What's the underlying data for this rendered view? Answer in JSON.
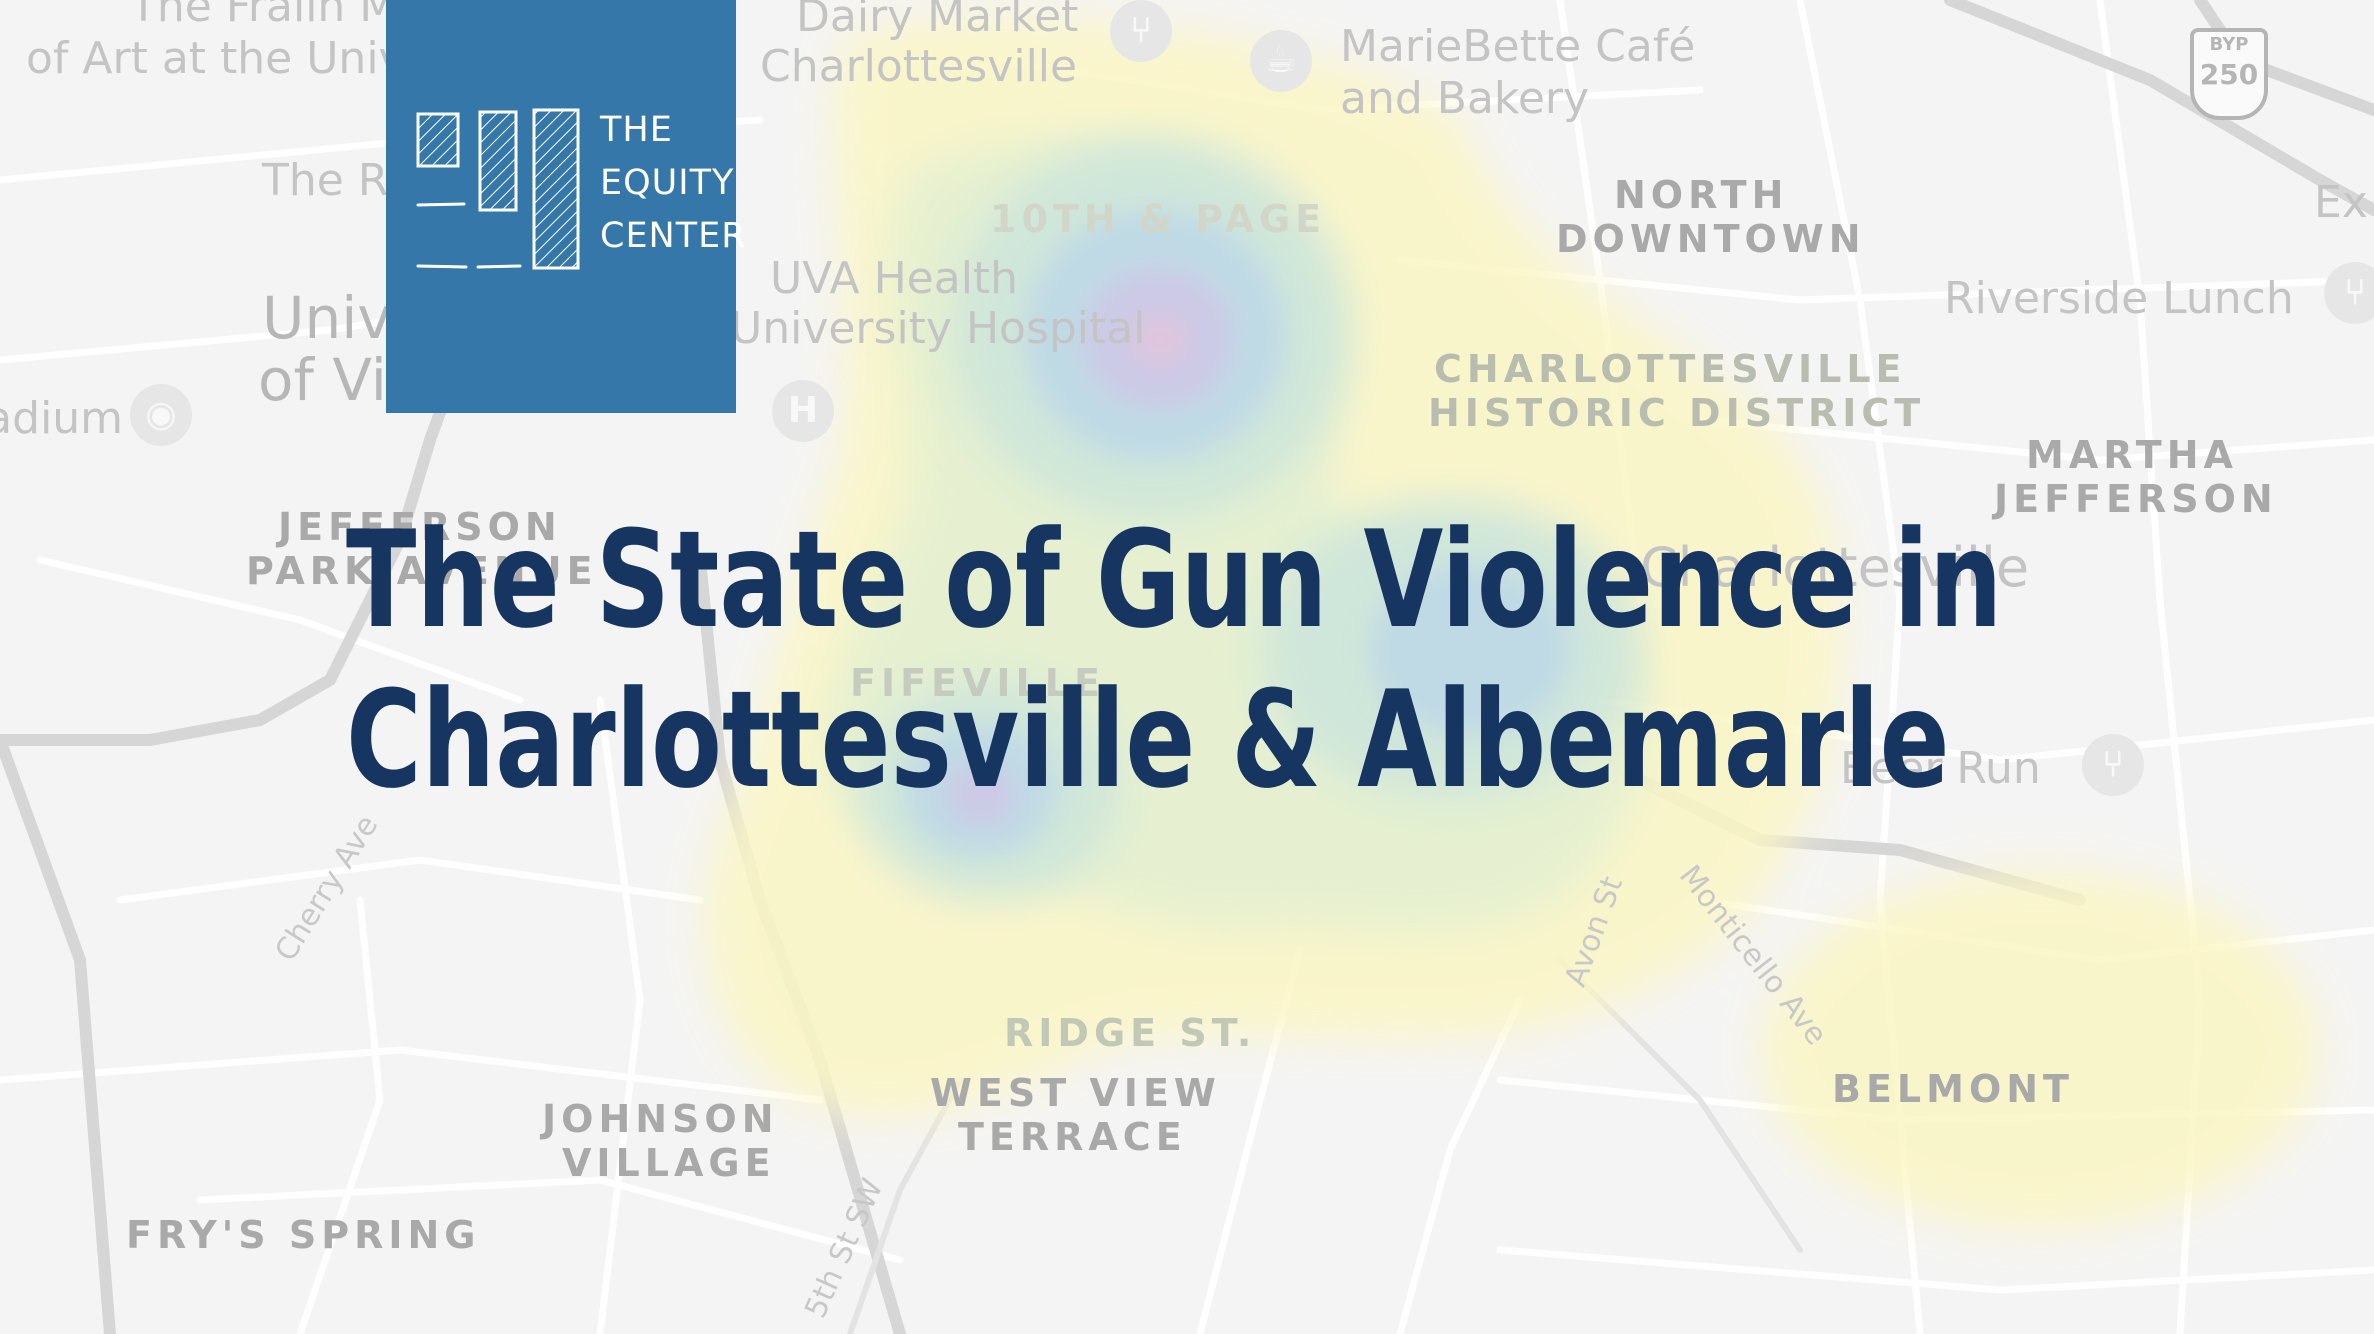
{
  "title": {
    "line1": "The State of Gun Violence in",
    "line2": "Charlottesville & Albemarle"
  },
  "logo": {
    "line1": "THE",
    "line2": "EQUITY",
    "line3": "CENTER",
    "background": "#3577a8"
  },
  "map": {
    "neighborhoods": {
      "north_downtown_1": "NORTH",
      "north_downtown_2": "DOWNTOWN",
      "historic_1": "CHARLOTTESVILLE",
      "historic_2": "HISTORIC DISTRICT",
      "martha_1": "MARTHA",
      "martha_2": "JEFFERSON",
      "jefferson_park_1": "JEFFERSON",
      "jefferson_park_2": "PARK AVENUE",
      "ridge_st": "RIDGE ST.",
      "west_view_1": "WEST VIEW",
      "west_view_2": "TERRACE",
      "johnson_1": "JOHNSON",
      "johnson_2": "VILLAGE",
      "frys_spring": "FRY'S SPRING",
      "belmont": "BELMONT",
      "fifeville": "FIFEVILLE",
      "tenth_page": "10TH & PAGE"
    },
    "places": {
      "fralin_1": "The Fralin Museum",
      "fralin_2": "of Art at the University",
      "dairy_1": "Dairy Market",
      "dairy_2": "Charlottesville",
      "mariebette_1": "MarieBette Café",
      "mariebette_2": "and Bakery",
      "the_r": "The Rotunda",
      "uva_1": "University",
      "uva_2": "of Virginia",
      "stadium": "Stadium",
      "uva_health_1": "UVA Health",
      "uva_health_2": "University Hospital",
      "riverside": "Riverside Lunch",
      "beer_run": "Beer Run",
      "charlottesville": "Charlottesville",
      "ex": "Ex"
    },
    "streets": {
      "cherry": "Cherry Ave",
      "fifth": "5th St SW",
      "avon": "Avon St",
      "monticello": "Monticello Ave"
    },
    "shields": {
      "byp": "BYP",
      "route": "250"
    },
    "icons": [
      "museum-icon",
      "restaurant-icon",
      "cafe-icon",
      "hospital-icon",
      "stadium-icon"
    ],
    "heatmap_colors": [
      "#fbf6c7",
      "#e8f2cc",
      "#cde6d6",
      "#b9d8e2",
      "#c3c3e2",
      "#d9bfd8"
    ]
  }
}
